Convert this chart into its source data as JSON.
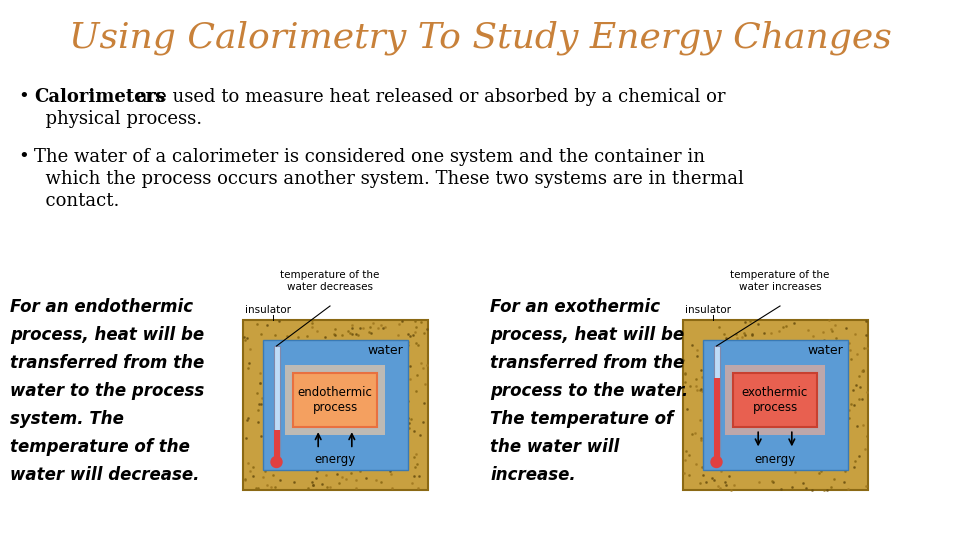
{
  "title": "Using Calorimetry To Study Energy Changes",
  "title_color": "#C8813A",
  "title_fontsize": 26,
  "bg_color": "#FFFFFF",
  "bullet1_bold": "Calorimeters",
  "bullet1_rest": " are used to measure heat released or absorbed by a chemical or",
  "bullet1_line2": "  physical process.",
  "bullet2_line1": "The water of a calorimeter is considered one system and the container in",
  "bullet2_line2": "  which the process occurs another system. These two systems are in thermal",
  "bullet2_line3": "  contact.",
  "left_text_lines": [
    "For an endothermic",
    "process, heat will be",
    "transferred from the",
    "water to the process",
    "system. The",
    "temperature of the",
    "water will decrease."
  ],
  "right_text_lines": [
    "For an exothermic",
    "process, heat will be",
    "transferred from the",
    "process to the water.",
    "The temperature of",
    "the water will",
    "increase."
  ],
  "endo_label": "endothermic\nprocess",
  "exo_label": "exothermic\nprocess",
  "water_label": "water",
  "energy_label": "energy",
  "insulator_label": "insulator",
  "temp_label_endo": "temperature of the\nwater decreases",
  "temp_label_exo": "temperature of the\nwater increases",
  "outer_color": "#C8A040",
  "outer_edge": "#8B6914",
  "water_color": "#5B9BD5",
  "water_edge": "#3A7AB5",
  "proc_endo_fill": "#F4A060",
  "proc_endo_edge": "#E87040",
  "proc_endo_glow": "#FFD0A0",
  "proc_exo_fill": "#E86050",
  "proc_exo_edge": "#C84030",
  "proc_exo_glow": "#FFB090",
  "therm_tube": "#D0E8FF",
  "therm_tube_edge": "#8080A0",
  "therm_merc_endo": "#E04040",
  "therm_merc_exo": "#E04040"
}
